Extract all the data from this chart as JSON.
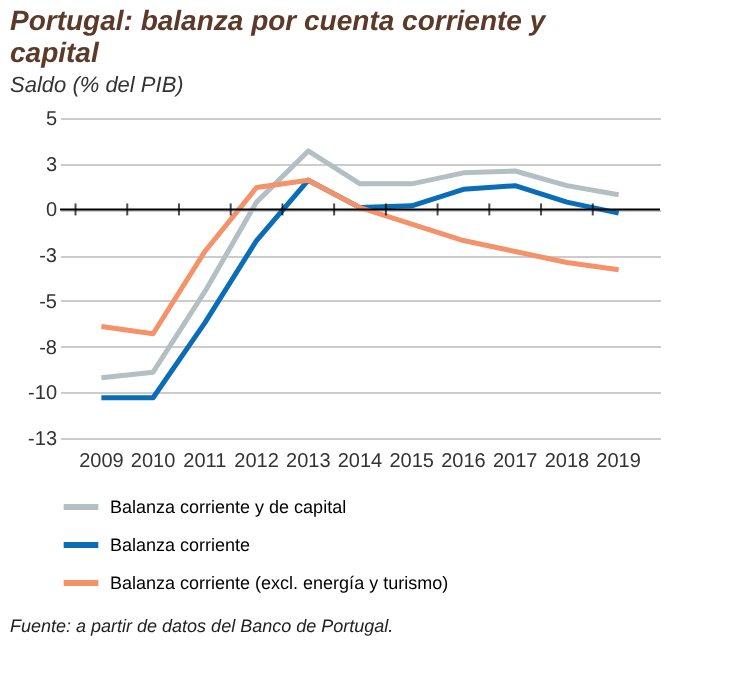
{
  "chart_data": {
    "type": "line",
    "title": "Portugal: balanza por cuenta corriente y capital",
    "subtitle": "Saldo (% del PIB)",
    "categories": [
      "2009",
      "2010",
      "2011",
      "2012",
      "2013",
      "2014",
      "2015",
      "2016",
      "2017",
      "2018",
      "2019"
    ],
    "series": [
      {
        "name": "Balanza corriente y de capital",
        "color": "#b4bfc4",
        "values": [
          -9.2,
          -8.9,
          -4.5,
          0.4,
          3.2,
          1.4,
          1.4,
          2.0,
          2.1,
          1.3,
          0.8
        ]
      },
      {
        "name": "Balanza corriente",
        "color": "#0a6db5",
        "values": [
          -10.3,
          -10.3,
          -6.2,
          -1.7,
          1.6,
          0.1,
          0.2,
          1.1,
          1.3,
          0.4,
          -0.2
        ]
      },
      {
        "name": "Balanza corriente (excl. energía y turismo)",
        "color": "#f4926a",
        "values": [
          -6.4,
          -6.8,
          -2.3,
          1.2,
          1.6,
          0.1,
          -0.8,
          -1.7,
          -2.3,
          -2.9,
          -3.3
        ]
      }
    ],
    "ylim": [
      -12.5,
      5
    ],
    "yticks": [
      5,
      {
        "value": 2.5,
        "label": "3"
      },
      0,
      {
        "value": -2.5,
        "label": "-3"
      },
      -5,
      {
        "value": -7.5,
        "label": "-8"
      },
      -10,
      {
        "value": -12.5,
        "label": "-13"
      }
    ],
    "grid": "y",
    "legend": "bottom",
    "marker": "none",
    "line_style": "solid",
    "ref_lines": [
      {
        "axis": "y",
        "value": 0,
        "color": "#000000"
      }
    ],
    "annotations": [
      "Fuente: a partir de datos del Banco de Portugal."
    ]
  }
}
